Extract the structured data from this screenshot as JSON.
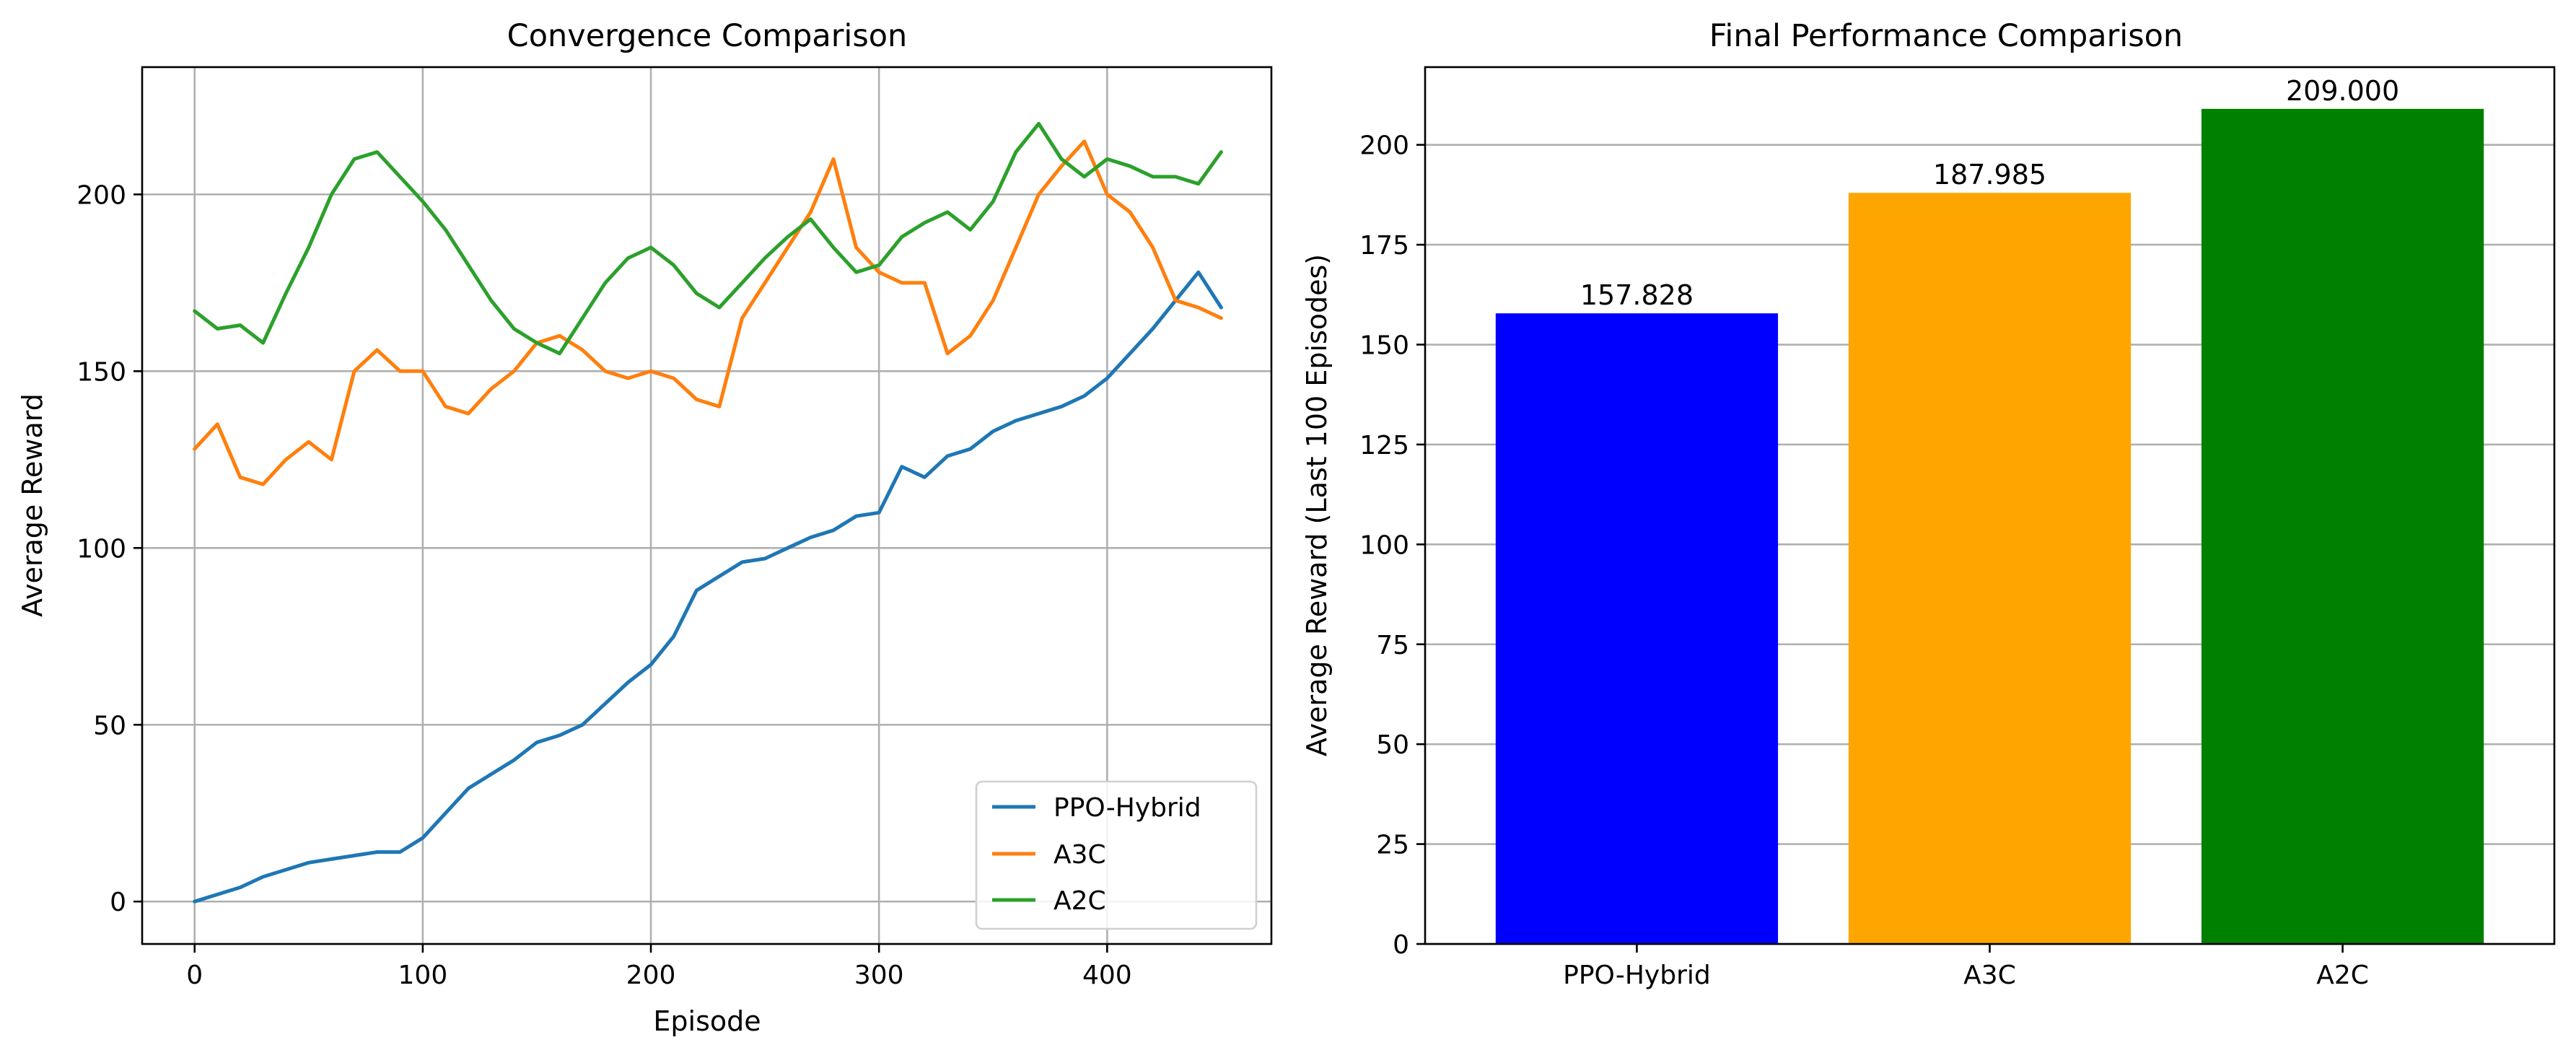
{
  "chart_data": [
    {
      "type": "line",
      "title": "Convergence Comparison",
      "xlabel": "Episode",
      "ylabel": "Average Reward",
      "xlim": [
        -23,
        472
      ],
      "ylim": [
        -12,
        236
      ],
      "xticks": [
        0,
        100,
        200,
        300,
        400
      ],
      "yticks": [
        0,
        50,
        100,
        150,
        200
      ],
      "grid": true,
      "legend_position": "lower-right",
      "series": [
        {
          "name": "PPO-Hybrid",
          "color": "#1f77b4",
          "x": [
            0,
            10,
            20,
            30,
            40,
            50,
            60,
            70,
            80,
            90,
            100,
            110,
            120,
            130,
            140,
            150,
            160,
            170,
            180,
            190,
            200,
            210,
            220,
            230,
            240,
            250,
            260,
            270,
            280,
            290,
            300,
            310,
            320,
            330,
            340,
            350,
            360,
            370,
            380,
            390,
            400,
            410,
            420,
            430,
            440,
            450
          ],
          "y": [
            0,
            2,
            4,
            7,
            9,
            11,
            12,
            13,
            14,
            14,
            18,
            25,
            32,
            36,
            40,
            45,
            47,
            50,
            56,
            62,
            67,
            75,
            88,
            92,
            96,
            97,
            100,
            103,
            105,
            109,
            110,
            123,
            120,
            126,
            128,
            133,
            136,
            138,
            140,
            143,
            148,
            155,
            162,
            170,
            178,
            168
          ]
        },
        {
          "name": "A3C",
          "color": "#ff7f0e",
          "x": [
            0,
            10,
            20,
            30,
            40,
            50,
            60,
            70,
            80,
            90,
            100,
            110,
            120,
            130,
            140,
            150,
            160,
            170,
            180,
            190,
            200,
            210,
            220,
            230,
            240,
            250,
            260,
            270,
            280,
            290,
            300,
            310,
            320,
            330,
            340,
            350,
            360,
            370,
            380,
            390,
            400,
            410,
            420,
            430,
            440,
            450
          ],
          "y": [
            128,
            135,
            120,
            118,
            125,
            130,
            125,
            150,
            156,
            150,
            150,
            140,
            138,
            145,
            150,
            158,
            160,
            156,
            150,
            148,
            150,
            148,
            142,
            140,
            165,
            175,
            185,
            195,
            210,
            185,
            178,
            175,
            175,
            155,
            160,
            170,
            185,
            200,
            208,
            215,
            200,
            195,
            185,
            170,
            168,
            165
          ]
        },
        {
          "name": "A2C",
          "color": "#2ca02c",
          "x": [
            0,
            10,
            20,
            30,
            40,
            50,
            60,
            70,
            80,
            90,
            100,
            110,
            120,
            130,
            140,
            150,
            160,
            170,
            180,
            190,
            200,
            210,
            220,
            230,
            240,
            250,
            260,
            270,
            280,
            290,
            300,
            310,
            320,
            330,
            340,
            350,
            360,
            370,
            380,
            390,
            400,
            410,
            420,
            430,
            440,
            450
          ],
          "y": [
            167,
            162,
            163,
            158,
            172,
            185,
            200,
            210,
            212,
            205,
            198,
            190,
            180,
            170,
            162,
            158,
            155,
            165,
            175,
            182,
            185,
            180,
            172,
            168,
            175,
            182,
            188,
            193,
            185,
            178,
            180,
            188,
            192,
            195,
            190,
            198,
            212,
            220,
            210,
            205,
            210,
            208,
            205,
            205,
            203,
            212
          ]
        }
      ]
    },
    {
      "type": "bar",
      "title": "Final Performance Comparison",
      "xlabel": "",
      "ylabel": "Average Reward (Last 100 Episodes)",
      "ylim": [
        0,
        219.45
      ],
      "yticks": [
        0,
        25,
        50,
        75,
        100,
        125,
        150,
        175,
        200
      ],
      "grid": true,
      "grid_axis": "y",
      "categories": [
        "PPO-Hybrid",
        "A3C",
        "A2C"
      ],
      "values": [
        157.828,
        187.985,
        209.0
      ],
      "data_labels": [
        "157.828",
        "187.985",
        "209.000"
      ],
      "colors": [
        "#0000ff",
        "#ffa500",
        "#008000"
      ]
    }
  ]
}
